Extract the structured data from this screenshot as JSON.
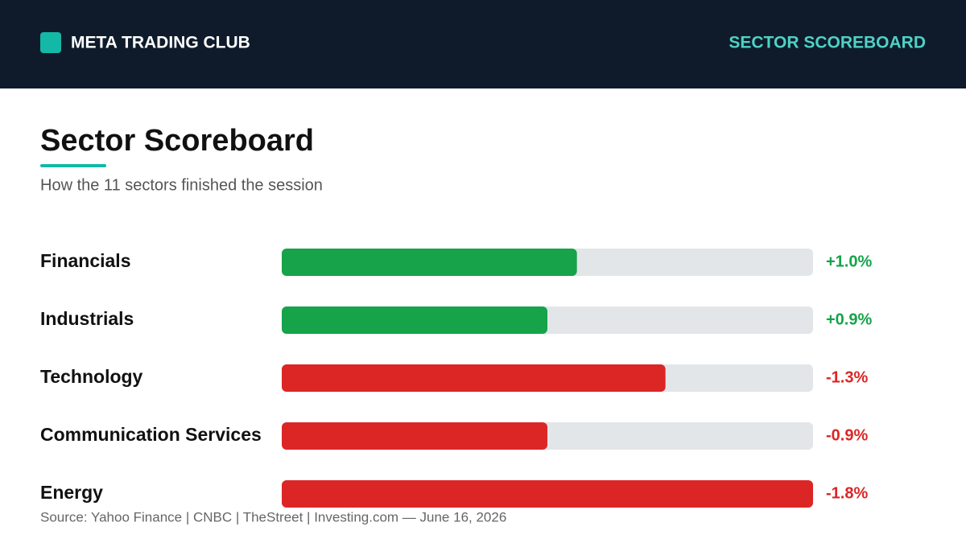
{
  "header": {
    "brand": "META TRADING CLUB",
    "section": "SECTOR SCOREBOARD"
  },
  "chart_data": {
    "type": "bar",
    "orientation": "horizontal",
    "title": "Sector Scoreboard",
    "subtitle": "How the 11 sectors finished the session",
    "categories": [
      "Financials",
      "Industrials",
      "Technology",
      "Communication Services",
      "Energy"
    ],
    "values": [
      1.0,
      0.9,
      -1.3,
      -0.9,
      -1.8
    ],
    "value_labels": [
      "+1.0%",
      "+0.9%",
      "-1.3%",
      "-0.9%",
      "-1.8%"
    ],
    "positive_color": "#16a34a",
    "negative_color": "#dc2626",
    "source": "Source: Yahoo Finance | CNBC | TheStreet | Investing.com — June 16, 2026"
  }
}
